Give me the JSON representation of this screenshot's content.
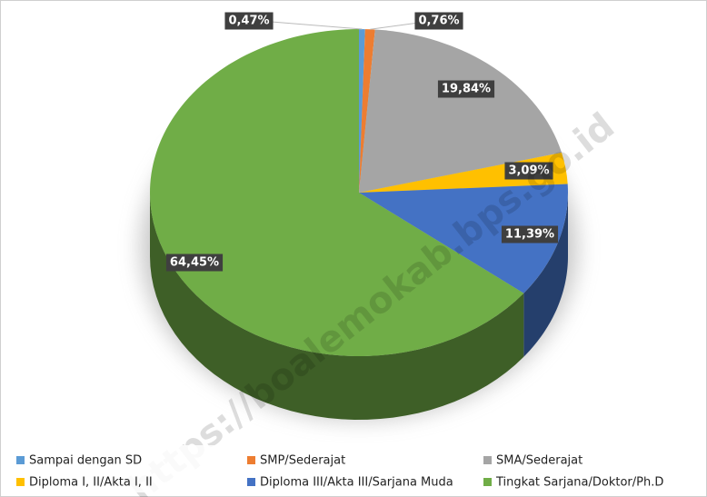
{
  "chart_data": {
    "type": "pie",
    "categories": [
      "Sampai dengan SD",
      "SMP/Sederajat",
      "SMA/Sederajat",
      "Diploma I, II/Akta I, II",
      "Diploma III/Akta III/Sarjana Muda",
      "Tingkat Sarjana/Doktor/Ph.D"
    ],
    "values": [
      0.47,
      0.76,
      19.84,
      3.09,
      11.39,
      64.45
    ],
    "value_labels": [
      "0,47%",
      "0,76%",
      "19,84%",
      "3,09%",
      "11,39%",
      "64,45%"
    ],
    "colors": [
      "#5b9bd5",
      "#ed7d31",
      "#a5a5a5",
      "#ffc000",
      "#4472c4",
      "#70ad47"
    ],
    "legend": "bottom",
    "watermark": "https://boalemokab.bps.go.id"
  }
}
